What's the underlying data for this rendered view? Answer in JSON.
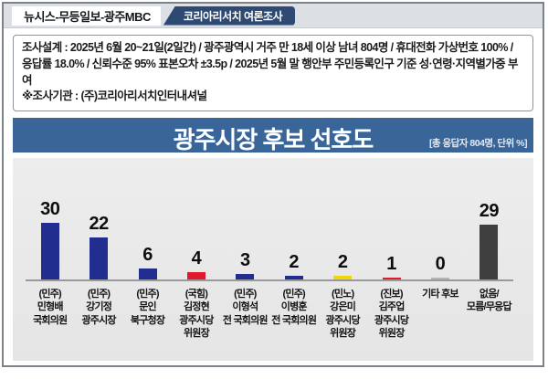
{
  "header": {
    "brand": "뉴시스-무등일보-광주MBC",
    "badge": "코리아리서치 여론조사"
  },
  "survey_box": {
    "design": "조사설계 : 2025년 6월 20~21일(2일간) / 광주광역시 거주 만 18세 이상 남녀 804명 / 휴대전화 가상번호 100% / 응답률 18.0% / 신뢰수준 95% 표본오차 ±3.5p / 2025년 5월 말 행안부 주민등록인구 기준 성·연령·지역별가중 부여",
    "agency": "※조사기관 : (주)코리아리서치인터내셔널"
  },
  "title_banner": {
    "title": "광주시장 후보 선호도",
    "subtitle": "[총 응답자 804명, 단위 %]"
  },
  "colors": {
    "banner_blue": "#3a6598",
    "badge_navy": "#2e4a73",
    "democratic_blue": "#212e8f",
    "red": "#e11b2b",
    "yellow": "#f3d50a",
    "etc_gray": "#b5b5b5",
    "none_dark_gray": "#3f3f3f"
  },
  "chart_data": {
    "type": "bar",
    "title": "광주시장 후보 선호도",
    "subtitle": "[총 응답자 804명, 단위 %]",
    "unit": "%",
    "total_respondents": 804,
    "ylim": [
      0,
      32
    ],
    "grid": false,
    "legend": false,
    "categories": [
      "(민주)\n민형배\n국회의원",
      "(민주)\n강기정\n광주시장",
      "(민주)\n문인\n북구청장",
      "(국힘)\n김정현\n광주시당\n위원장",
      "(민주)\n이형석\n전 국회의원",
      "(민주)\n이병훈\n전 국회의원",
      "(민노)\n강은미\n광주시당\n위원장",
      "(진보)\n김주업\n광주시당\n위원장",
      "기타 후보",
      "없음/\n모름/무응답"
    ],
    "values": [
      30,
      22,
      6,
      4,
      3,
      2,
      2,
      1,
      0,
      29
    ],
    "bars": [
      {
        "party": "민주",
        "name": "민형배",
        "position": "국회의원",
        "label": "(민주)\n민형배\n국회의원",
        "value": 30,
        "color": "#212e8f"
      },
      {
        "party": "민주",
        "name": "강기정",
        "position": "광주시장",
        "label": "(민주)\n강기정\n광주시장",
        "value": 22,
        "color": "#212e8f"
      },
      {
        "party": "민주",
        "name": "문인",
        "position": "북구청장",
        "label": "(민주)\n문인\n북구청장",
        "value": 6,
        "color": "#212e8f"
      },
      {
        "party": "국힘",
        "name": "김정현",
        "position": "광주시당 위원장",
        "label": "(국힘)\n김정현\n광주시당\n위원장",
        "value": 4,
        "color": "#e11b2b"
      },
      {
        "party": "민주",
        "name": "이형석",
        "position": "전 국회의원",
        "label": "(민주)\n이형석\n전 국회의원",
        "value": 3,
        "color": "#212e8f"
      },
      {
        "party": "민주",
        "name": "이병훈",
        "position": "전 국회의원",
        "label": "(민주)\n이병훈\n전 국회의원",
        "value": 2,
        "color": "#212e8f"
      },
      {
        "party": "민노",
        "name": "강은미",
        "position": "광주시당 위원장",
        "label": "(민노)\n강은미\n광주시당\n위원장",
        "value": 2,
        "color": "#f3d50a"
      },
      {
        "party": "진보",
        "name": "김주업",
        "position": "광주시당 위원장",
        "label": "(진보)\n김주업\n광주시당\n위원장",
        "value": 1,
        "color": "#e11b2b"
      },
      {
        "party": "",
        "name": "기타 후보",
        "position": "",
        "label": "기타 후보",
        "value": 0,
        "color": "#b5b5b5"
      },
      {
        "party": "",
        "name": "없음/모름/무응답",
        "position": "",
        "label": "없음/\n모름/무응답",
        "value": 29,
        "color": "#3f3f3f"
      }
    ]
  }
}
